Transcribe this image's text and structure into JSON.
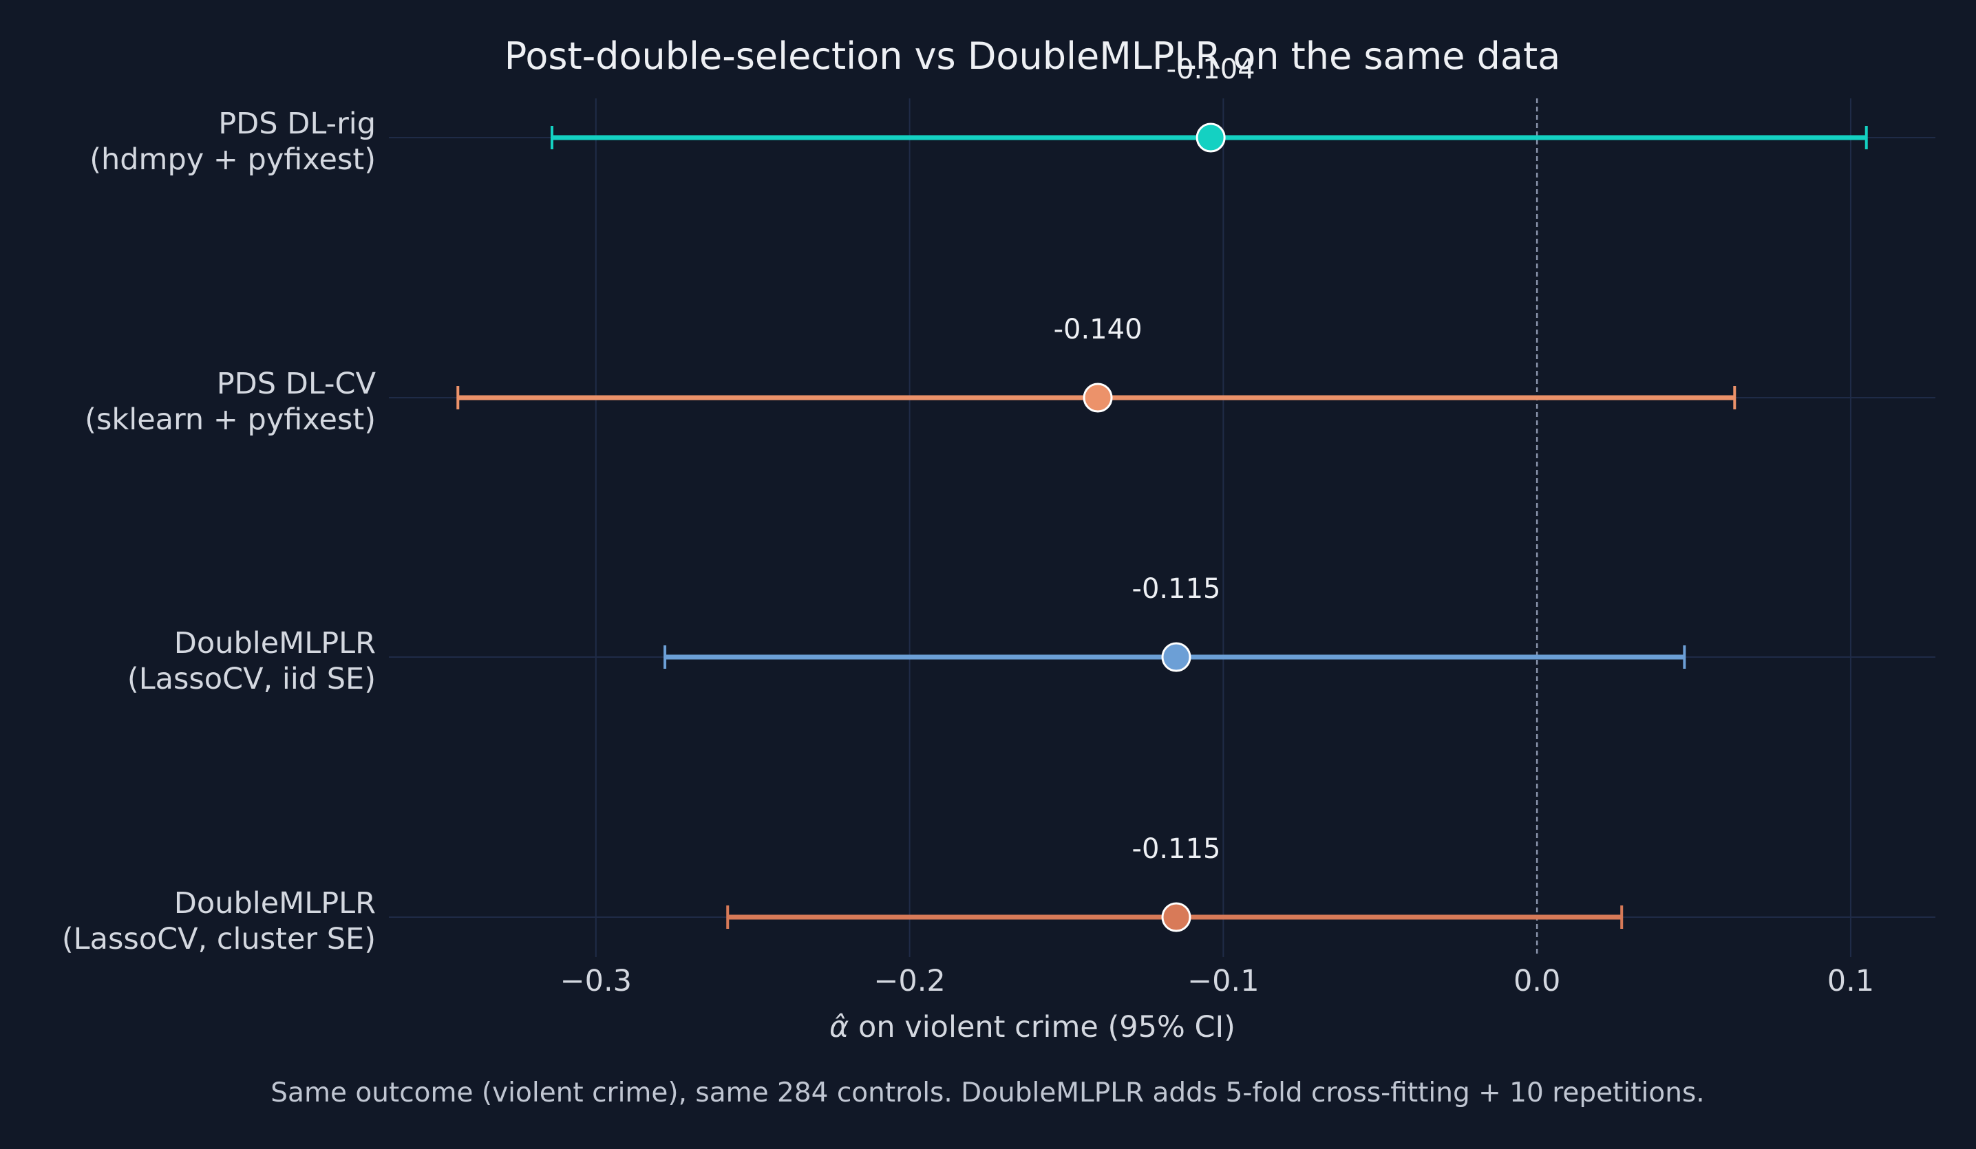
{
  "chart_data": {
    "type": "forest",
    "title": "Post-double-selection vs DoubleMLPLR on the same data",
    "xlabel_symbol": "α̂",
    "xlabel_rest": " on violent crime (95% CI)",
    "caption": "Same outcome (violent crime), same 284 controls. DoubleMLPLR adds 5-fold cross-fitting + 10 repetitions.",
    "xlim": [
      -0.366,
      0.127
    ],
    "xticks": [
      -0.3,
      -0.2,
      -0.1,
      0.0,
      0.1
    ],
    "xtick_labels": [
      "−0.3",
      "−0.2",
      "−0.1",
      "0.0",
      "0.1"
    ],
    "reference_line": 0.0,
    "grid": true,
    "legend": "none",
    "series": [
      {
        "label_line1": "PDS DL-rig",
        "label_line2": "(hdmpy + pyfixest)",
        "estimate": -0.104,
        "ci_low": -0.314,
        "ci_high": 0.105,
        "value_label": "-0.104",
        "color": "#14d1c2"
      },
      {
        "label_line1": "PDS DL-CV",
        "label_line2": "(sklearn + pyfixest)",
        "estimate": -0.14,
        "ci_low": -0.344,
        "ci_high": 0.063,
        "value_label": "-0.140",
        "color": "#ec926a"
      },
      {
        "label_line1": "DoubleMLPLR",
        "label_line2": "(LassoCV, iid SE)",
        "estimate": -0.115,
        "ci_low": -0.278,
        "ci_high": 0.047,
        "value_label": "-0.115",
        "color": "#6c9fd6"
      },
      {
        "label_line1": "DoubleMLPLR",
        "label_line2": "(LassoCV, cluster SE)",
        "estimate": -0.115,
        "ci_low": -0.258,
        "ci_high": 0.027,
        "value_label": "-0.115",
        "color": "#d87a58"
      }
    ]
  }
}
